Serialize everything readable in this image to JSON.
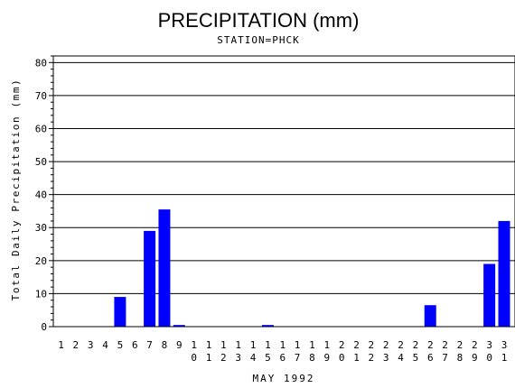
{
  "chart_data": {
    "type": "bar",
    "title": "PRECIPITATION (mm)",
    "subtitle": "STATION=PHCK",
    "xlabel": "MAY 1992",
    "ylabel": "Total Daily Precipitation (mm)",
    "ylim": [
      0,
      82
    ],
    "yticks": [
      0,
      10,
      20,
      30,
      40,
      50,
      60,
      70,
      80
    ],
    "grid": true,
    "bar_color": "#0000ff",
    "categories": [
      "1",
      "2",
      "3",
      "4",
      "5",
      "6",
      "7",
      "8",
      "9",
      "10",
      "11",
      "12",
      "13",
      "14",
      "15",
      "16",
      "17",
      "18",
      "19",
      "20",
      "21",
      "22",
      "23",
      "24",
      "25",
      "26",
      "27",
      "28",
      "29",
      "30",
      "31"
    ],
    "values": [
      0,
      0,
      0,
      0,
      9,
      0,
      29,
      35.5,
      0.5,
      0,
      0,
      0,
      0,
      0,
      0.5,
      0,
      0,
      0,
      0,
      0,
      0,
      0,
      0,
      0,
      0,
      6.5,
      0,
      0,
      0,
      19,
      32
    ]
  }
}
